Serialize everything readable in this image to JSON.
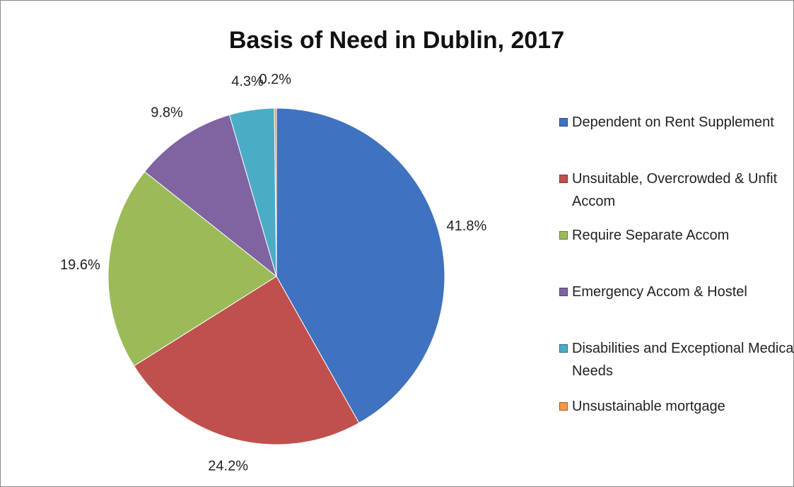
{
  "chart_data": {
    "type": "pie",
    "title": "Basis of Need in Dublin, 2017",
    "categories": [
      "Dependent on Rent Supplement",
      "Unsuitable, Overcrowded & Unfit Accom",
      "Require Separate Accom",
      "Emergency Accom & Hostel",
      "Disabilities and Exceptional Medical Needs",
      "Unsustainable mortgage"
    ],
    "values": [
      41.8,
      24.2,
      19.6,
      9.8,
      4.3,
      0.2
    ],
    "value_labels": [
      "41.8%",
      "24.2%",
      "19.6%",
      "9.8%",
      "4.3%",
      "0.2%"
    ],
    "colors": [
      "#3f72bf",
      "#c0504d",
      "#9bbb59",
      "#8064a2",
      "#4bacc6",
      "#f79646"
    ],
    "legend": "right"
  }
}
